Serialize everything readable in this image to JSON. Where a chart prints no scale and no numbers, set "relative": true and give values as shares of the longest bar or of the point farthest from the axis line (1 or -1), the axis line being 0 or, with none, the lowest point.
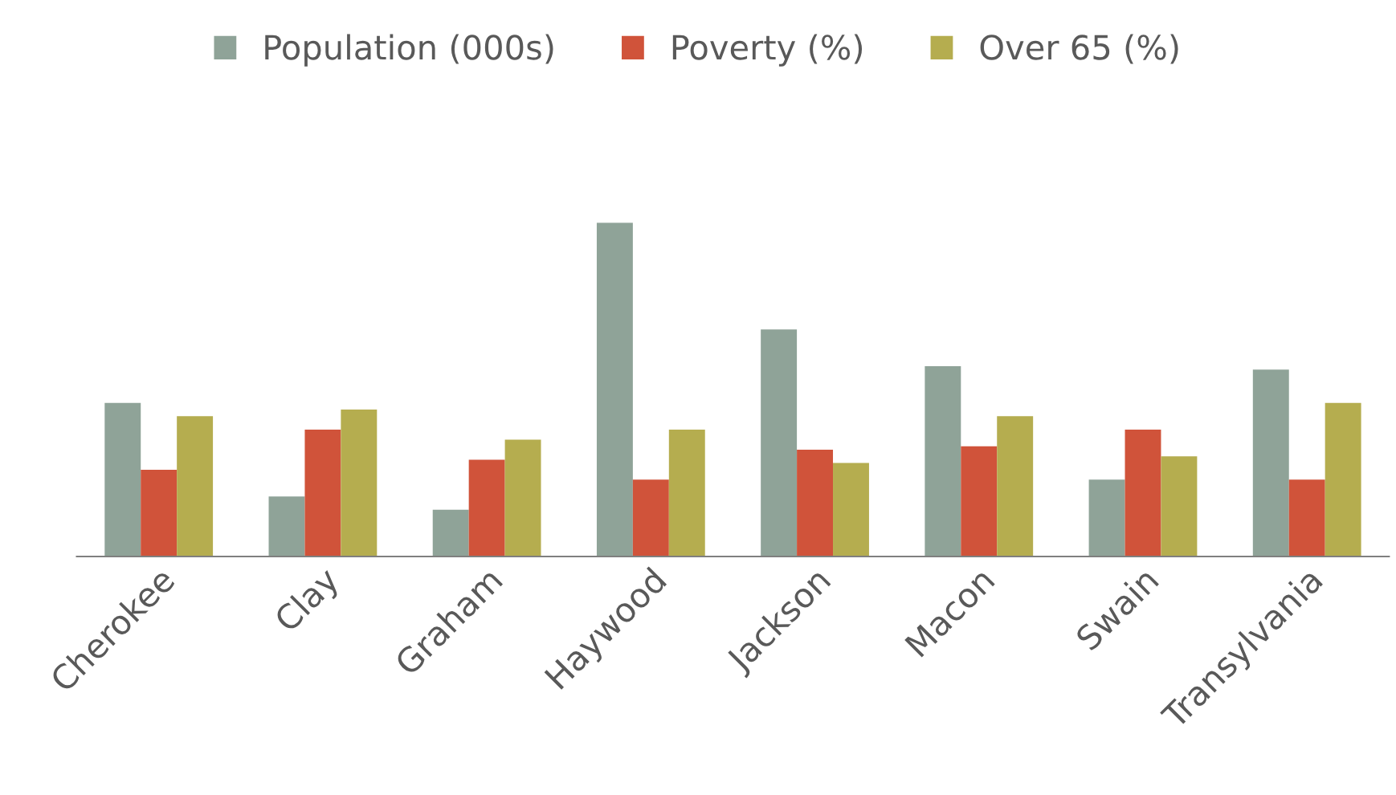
{
  "chart_data": {
    "type": "bar",
    "relative": true,
    "categories": [
      "Cherokee",
      "Clay",
      "Graham",
      "Haywood",
      "Jackson",
      "Macon",
      "Swain",
      "Transylvania"
    ],
    "series": [
      {
        "name": "Population (000s)",
        "color": "#8fa398",
        "values": [
          0.46,
          0.18,
          0.14,
          1,
          0.68,
          0.57,
          0.23,
          0.56
        ]
      },
      {
        "name": "Poverty (%)",
        "color": "#d0533a",
        "values": [
          0.26,
          0.38,
          0.29,
          0.23,
          0.32,
          0.33,
          0.38,
          0.23
        ]
      },
      {
        "name": "Over 65 (%)",
        "color": "#b5ad4f",
        "values": [
          0.42,
          0.44,
          0.35,
          0.38,
          0.28,
          0.42,
          0.3,
          0.46
        ]
      }
    ],
    "legend": "top",
    "grid": false,
    "tick_labels": "x"
  }
}
